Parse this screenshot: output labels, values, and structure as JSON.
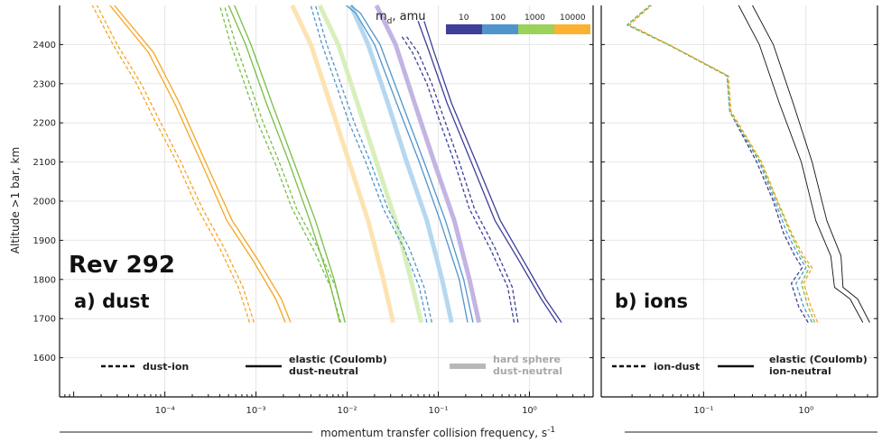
{
  "chart_data": [
    {
      "panel": "a) dust",
      "type": "line",
      "title": "Rev 292",
      "panel_label": "a) dust",
      "xscale": "log",
      "xlim": [
        7e-06,
        5
      ],
      "ylim": [
        1500,
        2500
      ],
      "xticks": [
        0.0001,
        0.001,
        0.01,
        0.1,
        1
      ],
      "xticklabels": [
        "10⁻⁴",
        "10⁻³",
        "10⁻²",
        "10⁻¹",
        "10⁰"
      ],
      "yticks": [
        1600,
        1700,
        1800,
        1900,
        2000,
        2100,
        2200,
        2300,
        2400
      ],
      "ylabel": "Altitude >1 bar, km",
      "colorbar": {
        "title_main": "m",
        "title_sub": "d",
        "title_rest": ", amu",
        "labels": [
          "10",
          "100",
          "1000",
          "10000"
        ],
        "colors": [
          "#3d3f99",
          "#4f95cc",
          "#9ad25a",
          "#fbb132"
        ]
      },
      "legend": [
        {
          "label_line1": "dust-ion",
          "label_line2": "",
          "style": "dashed"
        },
        {
          "label_line1": "elastic (Coulomb)",
          "label_line2": "dust-neutral",
          "style": "solid"
        },
        {
          "label_line1": "hard sphere",
          "label_line2": "dust-neutral",
          "style": "thick-light"
        }
      ],
      "series": [
        {
          "mass": "10",
          "kind": "hard sphere dust-neutral",
          "color": "#c3b4e3",
          "x": [
            0.28,
            0.22,
            0.15,
            0.09,
            0.055,
            0.034,
            0.021
          ],
          "y": [
            1690,
            1800,
            1950,
            2100,
            2250,
            2400,
            2500
          ]
        },
        {
          "mass": "100",
          "kind": "hard sphere dust-neutral",
          "color": "#b5d8f0",
          "x": [
            0.14,
            0.11,
            0.075,
            0.045,
            0.028,
            0.017,
            0.011
          ],
          "y": [
            1690,
            1800,
            1950,
            2100,
            2250,
            2400,
            2500
          ]
        },
        {
          "mass": "1000",
          "kind": "hard sphere dust-neutral",
          "color": "#d8efbc",
          "x": [
            0.065,
            0.05,
            0.034,
            0.021,
            0.013,
            0.008,
            0.005
          ],
          "y": [
            1690,
            1800,
            1950,
            2100,
            2250,
            2400,
            2500
          ]
        },
        {
          "mass": "10000",
          "kind": "hard sphere dust-neutral",
          "color": "#fde3b2",
          "x": [
            0.032,
            0.025,
            0.017,
            0.0105,
            0.0065,
            0.004,
            0.0025
          ],
          "y": [
            1690,
            1800,
            1950,
            2100,
            2250,
            2400,
            2500
          ]
        },
        {
          "mass": "10",
          "kind": "elastic dust-neutral",
          "color": "#3d3f99",
          "x": [
            2.25,
            1.5,
            0.85,
            0.48,
            0.26,
            0.14,
            0.09,
            0.07
          ],
          "y": [
            1690,
            1750,
            1850,
            1950,
            2100,
            2250,
            2380,
            2460
          ]
        },
        {
          "mass": "10",
          "kind": "elastic dust-neutral",
          "color": "#3d3f99",
          "x": [
            2.0,
            1.35,
            0.76,
            0.42,
            0.23,
            0.125,
            0.08,
            0.06
          ],
          "y": [
            1690,
            1750,
            1850,
            1950,
            2100,
            2250,
            2380,
            2460
          ]
        },
        {
          "mass": "100",
          "kind": "elastic dust-neutral",
          "color": "#4f95cc",
          "x": [
            0.24,
            0.19,
            0.12,
            0.07,
            0.04,
            0.023,
            0.014,
            0.011
          ],
          "y": [
            1690,
            1800,
            1950,
            2100,
            2250,
            2400,
            2480,
            2500
          ]
        },
        {
          "mass": "100",
          "kind": "elastic dust-neutral",
          "color": "#4f95cc",
          "x": [
            0.21,
            0.17,
            0.105,
            0.062,
            0.035,
            0.02,
            0.0125,
            0.0098
          ],
          "y": [
            1690,
            1800,
            1950,
            2100,
            2250,
            2400,
            2480,
            2500
          ]
        },
        {
          "mass": "1000",
          "kind": "elastic dust-neutral",
          "color": "#76c043",
          "x": [
            0.0095,
            0.0072,
            0.0045,
            0.0026,
            0.0015,
            0.00088,
            0.00058
          ],
          "y": [
            1690,
            1800,
            1950,
            2100,
            2250,
            2400,
            2500
          ]
        },
        {
          "mass": "1000",
          "kind": "elastic dust-neutral",
          "color": "#76c043",
          "x": [
            0.0083,
            0.0063,
            0.0039,
            0.0023,
            0.0013,
            0.00077,
            0.0005
          ],
          "y": [
            1690,
            1800,
            1950,
            2100,
            2250,
            2400,
            2500
          ]
        },
        {
          "mass": "10000",
          "kind": "elastic dust-neutral",
          "color": "#f5a623",
          "x": [
            0.0024,
            0.0019,
            0.00105,
            0.00055,
            0.00028,
            0.000145,
            7.5e-05,
            2.8e-05
          ],
          "y": [
            1690,
            1750,
            1850,
            1950,
            2100,
            2250,
            2380,
            2500
          ]
        },
        {
          "mass": "10000",
          "kind": "elastic dust-neutral",
          "color": "#f5a623",
          "x": [
            0.0021,
            0.00165,
            0.00092,
            0.00048,
            0.00025,
            0.000128,
            6.6e-05,
            2.5e-05
          ],
          "y": [
            1690,
            1750,
            1850,
            1950,
            2100,
            2250,
            2380,
            2500
          ]
        },
        {
          "mass": "10",
          "kind": "dust-ion",
          "color": "#3d3f99",
          "x": [
            0.75,
            0.65,
            0.42,
            0.25,
            0.17,
            0.12,
            0.085,
            0.06,
            0.045
          ],
          "y": [
            1690,
            1780,
            1880,
            1980,
            2100,
            2200,
            2300,
            2380,
            2420
          ]
        },
        {
          "mass": "10",
          "kind": "dust-ion",
          "color": "#3d3f99",
          "x": [
            0.68,
            0.58,
            0.37,
            0.22,
            0.15,
            0.105,
            0.075,
            0.052,
            0.04
          ],
          "y": [
            1690,
            1780,
            1880,
            1980,
            2100,
            2200,
            2300,
            2380,
            2420
          ]
        },
        {
          "mass": "100",
          "kind": "dust-ion",
          "color": "#4f95cc",
          "x": [
            0.085,
            0.07,
            0.048,
            0.028,
            0.018,
            0.012,
            0.0085,
            0.006,
            0.0045
          ],
          "y": [
            1690,
            1780,
            1880,
            1980,
            2100,
            2200,
            2300,
            2400,
            2500
          ]
        },
        {
          "mass": "100",
          "kind": "dust-ion",
          "color": "#4f95cc",
          "x": [
            0.075,
            0.062,
            0.042,
            0.025,
            0.016,
            0.0105,
            0.0075,
            0.0053,
            0.004
          ],
          "y": [
            1690,
            1780,
            1880,
            1980,
            2100,
            2200,
            2300,
            2400,
            2500
          ]
        },
        {
          "mass": "1000",
          "kind": "dust-ion",
          "color": "#76c043",
          "x": [
            0.0095,
            0.0075,
            0.0048,
            0.0028,
            0.0018,
            0.0012,
            0.00085,
            0.0006,
            0.00045
          ],
          "y": [
            1690,
            1780,
            1880,
            1980,
            2100,
            2200,
            2300,
            2400,
            2500
          ]
        },
        {
          "mass": "1000",
          "kind": "dust-ion",
          "color": "#76c043",
          "x": [
            0.0085,
            0.0066,
            0.0042,
            0.0025,
            0.0016,
            0.00105,
            0.00075,
            0.00053,
            0.0004
          ],
          "y": [
            1690,
            1780,
            1880,
            1980,
            2100,
            2200,
            2300,
            2400,
            2500
          ]
        },
        {
          "mass": "10000",
          "kind": "dust-ion",
          "color": "#f5a623",
          "x": [
            0.00095,
            0.00072,
            0.00045,
            0.00026,
            0.00015,
            9e-05,
            5.5e-05,
            3e-05,
            1.8e-05
          ],
          "y": [
            1690,
            1780,
            1880,
            1980,
            2100,
            2200,
            2300,
            2400,
            2500
          ]
        },
        {
          "mass": "10000",
          "kind": "dust-ion",
          "color": "#f5a623",
          "x": [
            0.00085,
            0.00064,
            0.0004,
            0.00023,
            0.000135,
            8e-05,
            4.9e-05,
            2.7e-05,
            1.6e-05
          ],
          "y": [
            1690,
            1780,
            1880,
            1980,
            2100,
            2200,
            2300,
            2400,
            2500
          ]
        }
      ]
    },
    {
      "panel": "b) ions",
      "type": "line",
      "panel_label": "b) ions",
      "xscale": "log",
      "xlim": [
        0.01,
        5
      ],
      "ylim": [
        1500,
        2500
      ],
      "xticks": [
        0.1,
        1
      ],
      "xticklabels": [
        "10⁻¹",
        "10⁰"
      ],
      "xlabel_main": "momentum transfer collision frequency, s",
      "xlabel_sup": "-1",
      "legend": [
        {
          "label_line1": "ion-dust",
          "label_line2": "",
          "style": "dashed"
        },
        {
          "label_line1": "elastic (Coulomb)",
          "label_line2": "ion-neutral",
          "style": "solid"
        }
      ],
      "series": [
        {
          "kind": "elastic ion-neutral",
          "color": "#111111",
          "x": [
            4.2,
            3.2,
            2.3,
            2.2,
            1.6,
            1.15,
            0.75,
            0.48,
            0.3
          ],
          "y": [
            1690,
            1750,
            1780,
            1860,
            1950,
            2100,
            2250,
            2400,
            2500
          ]
        },
        {
          "kind": "elastic ion-neutral",
          "color": "#111111",
          "x": [
            3.6,
            2.7,
            1.9,
            1.75,
            1.25,
            0.9,
            0.55,
            0.35,
            0.22
          ],
          "y": [
            1690,
            1750,
            1780,
            1860,
            1950,
            2100,
            2250,
            2400,
            2500
          ]
        },
        {
          "mass": "10",
          "kind": "ion-dust",
          "color": "#3d3f99",
          "x": [
            1.05,
            0.85,
            0.72,
            0.92,
            0.78,
            0.6,
            0.48,
            0.33,
            0.18,
            0.17,
            0.045,
            0.018,
            0.022,
            0.03
          ],
          "y": [
            1690,
            1730,
            1790,
            1830,
            1860,
            1920,
            2000,
            2100,
            2230,
            2320,
            2400,
            2450,
            2470,
            2500
          ]
        },
        {
          "mass": "100",
          "kind": "ion-dust",
          "color": "#4f95cc",
          "x": [
            1.15,
            0.95,
            0.8,
            1.0,
            0.85,
            0.65,
            0.5,
            0.35,
            0.18,
            0.17,
            0.045,
            0.018,
            0.022,
            0.03
          ],
          "y": [
            1690,
            1730,
            1790,
            1830,
            1860,
            1920,
            2000,
            2100,
            2230,
            2320,
            2400,
            2450,
            2470,
            2500
          ]
        },
        {
          "mass": "1000",
          "kind": "ion-dust",
          "color": "#76c043",
          "x": [
            1.22,
            1.05,
            0.9,
            1.08,
            0.9,
            0.7,
            0.52,
            0.36,
            0.18,
            0.17,
            0.045,
            0.018,
            0.022,
            0.03
          ],
          "y": [
            1690,
            1730,
            1790,
            1830,
            1860,
            1920,
            2000,
            2100,
            2230,
            2320,
            2400,
            2450,
            2470,
            2500
          ]
        },
        {
          "mass": "10000",
          "kind": "ion-dust",
          "color": "#f5a623",
          "x": [
            1.3,
            1.12,
            0.95,
            1.15,
            0.95,
            0.72,
            0.53,
            0.37,
            0.185,
            0.175,
            0.046,
            0.019,
            0.023,
            0.031
          ],
          "y": [
            1690,
            1730,
            1790,
            1830,
            1860,
            1920,
            2000,
            2100,
            2230,
            2320,
            2400,
            2450,
            2470,
            2500
          ]
        }
      ]
    }
  ]
}
